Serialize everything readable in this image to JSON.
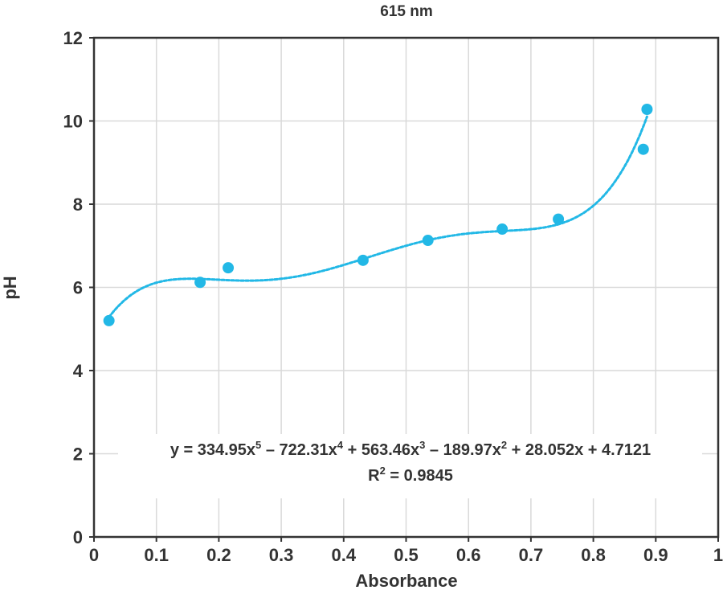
{
  "chart_data": {
    "type": "scatter",
    "title": "615 nm",
    "xlabel": "Absorbance",
    "ylabel": "pH",
    "xlim": [
      0,
      1
    ],
    "ylim": [
      0,
      12
    ],
    "x_ticks": [
      "0",
      "0.1",
      "0.2",
      "0.3",
      "0.4",
      "0.5",
      "0.6",
      "0.7",
      "0.8",
      "0.9",
      "1"
    ],
    "y_ticks": [
      "0",
      "2",
      "4",
      "6",
      "8",
      "10",
      "12"
    ],
    "grid": true,
    "series": [
      {
        "points": [
          {
            "x": 0.024,
            "y": 5.2
          },
          {
            "x": 0.17,
            "y": 6.12
          },
          {
            "x": 0.215,
            "y": 6.47
          },
          {
            "x": 0.431,
            "y": 6.65
          },
          {
            "x": 0.535,
            "y": 7.13
          },
          {
            "x": 0.654,
            "y": 7.4
          },
          {
            "x": 0.744,
            "y": 7.64
          },
          {
            "x": 0.88,
            "y": 9.32
          },
          {
            "x": 0.886,
            "y": 10.28
          }
        ],
        "color": "#22b8e6"
      }
    ],
    "trendline": {
      "type": "polynomial",
      "order": 5,
      "coefficients": [
        334.95,
        -722.31,
        563.46,
        -189.97,
        28.052,
        4.7121
      ],
      "x_range": [
        0.024,
        0.886
      ],
      "color": "#22b8e6",
      "style": "dotted"
    },
    "annotation": {
      "equation": {
        "prefix": "y = 334.95x",
        "e1": "5",
        "t2": " – 722.31x",
        "e2": "4",
        "t3": " + 563.46x",
        "e3": "3",
        "t4": " – 189.97x",
        "e4": "2",
        "t5": " + 28.052x + 4.7121"
      },
      "r2": {
        "prefix": "R",
        "exp": "2",
        "value": " = 0.9845"
      }
    }
  }
}
